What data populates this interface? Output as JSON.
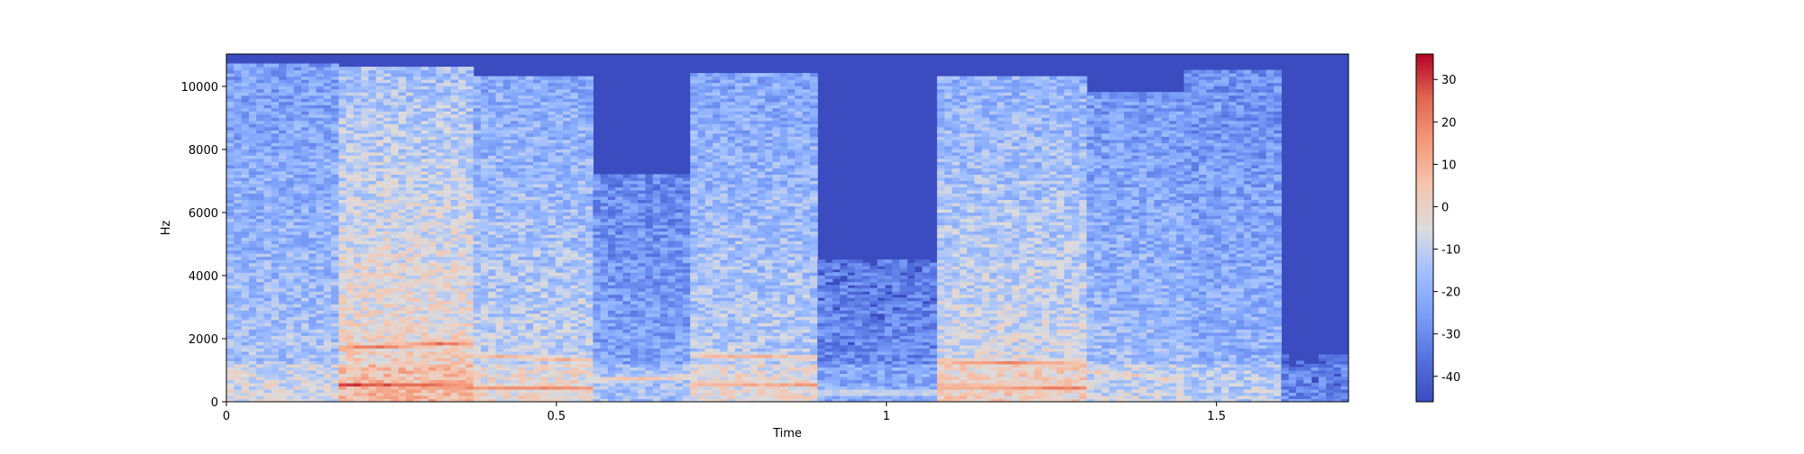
{
  "chart_data": {
    "type": "heatmap",
    "title": "",
    "xlabel": "Time",
    "ylabel": "Hz",
    "xlim": [
      0,
      1.7
    ],
    "ylim": [
      0,
      11025
    ],
    "x_ticks": [
      {
        "value": 0,
        "label": "0"
      },
      {
        "value": 0.5,
        "label": "0.5"
      },
      {
        "value": 1,
        "label": "1"
      },
      {
        "value": 1.5,
        "label": "1.5"
      }
    ],
    "y_ticks": [
      {
        "value": 0,
        "label": "0"
      },
      {
        "value": 2000,
        "label": "2000"
      },
      {
        "value": 4000,
        "label": "4000"
      },
      {
        "value": 6000,
        "label": "6000"
      },
      {
        "value": 8000,
        "label": "8000"
      },
      {
        "value": 10000,
        "label": "10000"
      }
    ],
    "colorbar": {
      "colormap": "coolwarm",
      "range": [
        -46,
        36
      ],
      "ticks": [
        {
          "value": 30,
          "label": "30"
        },
        {
          "value": 20,
          "label": "20"
        },
        {
          "value": 10,
          "label": "10"
        },
        {
          "value": 0,
          "label": "0"
        },
        {
          "value": -10,
          "label": "-10"
        },
        {
          "value": -20,
          "label": "-20"
        },
        {
          "value": -30,
          "label": "-30"
        },
        {
          "value": -40,
          "label": "-40"
        }
      ]
    },
    "segments": [
      {
        "t_start": 0.0,
        "t_end": 0.17,
        "level": 0.4,
        "top": 10700,
        "formants": []
      },
      {
        "t_start": 0.17,
        "t_end": 0.37,
        "level": 0.58,
        "top": 10600,
        "formants": [
          {
            "f0": 1700,
            "f1": 1900,
            "level": 0.85
          },
          {
            "f0": 550,
            "f1": 500,
            "level": 0.95
          }
        ]
      },
      {
        "t_start": 0.37,
        "t_end": 0.56,
        "level": 0.46,
        "top": 10300,
        "formants": [
          {
            "f0": 1500,
            "f1": 1300,
            "level": 0.7
          },
          {
            "f0": 480,
            "f1": 420,
            "level": 0.8
          }
        ]
      },
      {
        "t_start": 0.56,
        "t_end": 0.7,
        "level": 0.3,
        "top": 7200,
        "formants": [
          {
            "f0": 700,
            "f1": 800,
            "level": 0.65
          }
        ]
      },
      {
        "t_start": 0.7,
        "t_end": 0.9,
        "level": 0.44,
        "top": 10400,
        "formants": [
          {
            "f0": 1500,
            "f1": 1400,
            "level": 0.7
          },
          {
            "f0": 600,
            "f1": 550,
            "level": 0.75
          }
        ]
      },
      {
        "t_start": 0.9,
        "t_end": 1.08,
        "level": 0.22,
        "top": 4500,
        "formants": [
          {
            "f0": 300,
            "f1": 300,
            "level": 0.55
          }
        ]
      },
      {
        "t_start": 1.08,
        "t_end": 1.3,
        "level": 0.5,
        "top": 10300,
        "formants": [
          {
            "f0": 1300,
            "f1": 1200,
            "level": 0.78
          },
          {
            "f0": 500,
            "f1": 450,
            "level": 0.82
          }
        ]
      },
      {
        "t_start": 1.3,
        "t_end": 1.45,
        "level": 0.38,
        "top": 9800,
        "formants": [
          {
            "f0": 1000,
            "f1": 700,
            "level": 0.62
          }
        ]
      },
      {
        "t_start": 1.45,
        "t_end": 1.6,
        "level": 0.34,
        "top": 10500,
        "formants": []
      },
      {
        "t_start": 1.6,
        "t_end": 1.7,
        "level": 0.12,
        "top": 1500,
        "formants": []
      }
    ]
  }
}
